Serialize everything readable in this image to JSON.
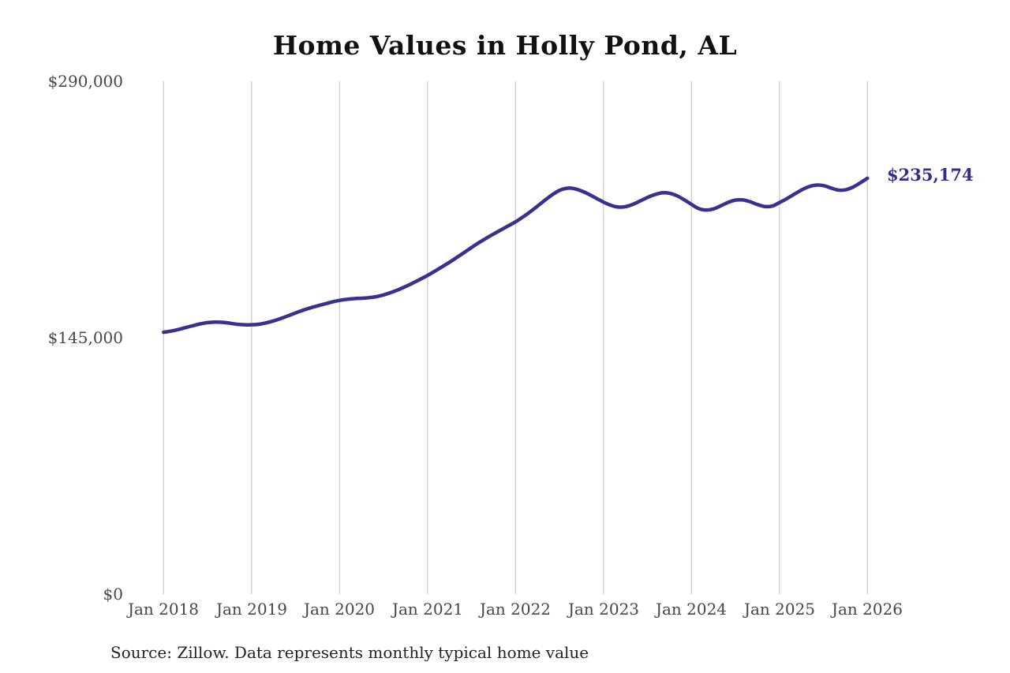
{
  "source_note": "Source: Zillow. Data represents monthly typical home value",
  "colors": {
    "line": "#37328f",
    "end_label": "#302e85",
    "grid": "#cccccc",
    "axis_text": "#474747",
    "title_text": "#111111",
    "source_text": "#222222",
    "background": "#ffffff"
  },
  "chart_data": {
    "type": "line",
    "title": "Home Values in Holly Pond, AL",
    "xlabel": "",
    "ylabel": "",
    "ylim": [
      0,
      290000
    ],
    "grid": "vertical-only",
    "legend": false,
    "end_label": "$235,174",
    "last_point": {
      "month": "2026-01",
      "value": 235174
    },
    "y_ticks": [
      {
        "label": "$290,000",
        "value": 290000
      },
      {
        "label": "$145,000",
        "value": 145000
      },
      {
        "label": "$0",
        "value": 0
      }
    ],
    "x_ticks": [
      {
        "label": "Jan 2018",
        "month_index": 0
      },
      {
        "label": "Jan 2019",
        "month_index": 12
      },
      {
        "label": "Jan 2020",
        "month_index": 24
      },
      {
        "label": "Jan 2021",
        "month_index": 36
      },
      {
        "label": "Jan 2022",
        "month_index": 48
      },
      {
        "label": "Jan 2023",
        "month_index": 60
      },
      {
        "label": "Jan 2024",
        "month_index": 72
      },
      {
        "label": "Jan 2025",
        "month_index": 84
      },
      {
        "label": "Jan 2026",
        "month_index": 96
      }
    ],
    "series": [
      {
        "name": "Monthly typical home value",
        "color": "#37328f",
        "x": [
          "2018-01",
          "2018-02",
          "2018-03",
          "2018-04",
          "2018-05",
          "2018-06",
          "2018-07",
          "2018-08",
          "2018-09",
          "2018-10",
          "2018-11",
          "2018-12",
          "2019-01",
          "2019-02",
          "2019-03",
          "2019-04",
          "2019-05",
          "2019-06",
          "2019-07",
          "2019-08",
          "2019-09",
          "2019-10",
          "2019-11",
          "2019-12",
          "2020-01",
          "2020-02",
          "2020-03",
          "2020-04",
          "2020-05",
          "2020-06",
          "2020-07",
          "2020-08",
          "2020-09",
          "2020-10",
          "2020-11",
          "2020-12",
          "2021-01",
          "2021-02",
          "2021-03",
          "2021-04",
          "2021-05",
          "2021-06",
          "2021-07",
          "2021-08",
          "2021-09",
          "2021-10",
          "2021-11",
          "2021-12",
          "2022-01",
          "2022-02",
          "2022-03",
          "2022-04",
          "2022-05",
          "2022-06",
          "2022-07",
          "2022-08",
          "2022-09",
          "2022-10",
          "2022-11",
          "2022-12",
          "2023-01",
          "2023-02",
          "2023-03",
          "2023-04",
          "2023-05",
          "2023-06",
          "2023-07",
          "2023-08",
          "2023-09",
          "2023-10",
          "2023-11",
          "2023-12",
          "2024-01",
          "2024-02",
          "2024-03",
          "2024-04",
          "2024-05",
          "2024-06",
          "2024-07",
          "2024-08",
          "2024-09",
          "2024-10",
          "2024-11",
          "2024-12",
          "2025-01",
          "2025-02",
          "2025-03",
          "2025-04",
          "2025-05",
          "2025-06",
          "2025-07",
          "2025-08",
          "2025-09",
          "2025-10",
          "2025-11",
          "2025-12",
          "2026-01"
        ],
        "values": [
          148100,
          148700,
          149600,
          150700,
          151800,
          152800,
          153500,
          153800,
          153700,
          153200,
          152600,
          152300,
          152300,
          152600,
          153400,
          154500,
          155900,
          157400,
          159000,
          160500,
          161800,
          163000,
          164100,
          165200,
          166100,
          166700,
          167100,
          167300,
          167600,
          168200,
          169200,
          170500,
          172100,
          173900,
          175900,
          178000,
          180200,
          182600,
          185100,
          187700,
          190400,
          193200,
          196000,
          198700,
          201200,
          203600,
          205900,
          208200,
          210500,
          213200,
          216200,
          219400,
          222700,
          225800,
          228300,
          229500,
          229300,
          228000,
          226100,
          223900,
          221700,
          219900,
          218900,
          219100,
          220400,
          222300,
          224300,
          225900,
          226900,
          226700,
          225300,
          223000,
          220400,
          218000,
          217200,
          217800,
          219600,
          221500,
          222800,
          222900,
          221900,
          220300,
          219200,
          219400,
          221400,
          223600,
          226100,
          228500,
          230400,
          231300,
          231000,
          229700,
          228500,
          228600,
          230100,
          232500,
          235174
        ]
      }
    ]
  }
}
